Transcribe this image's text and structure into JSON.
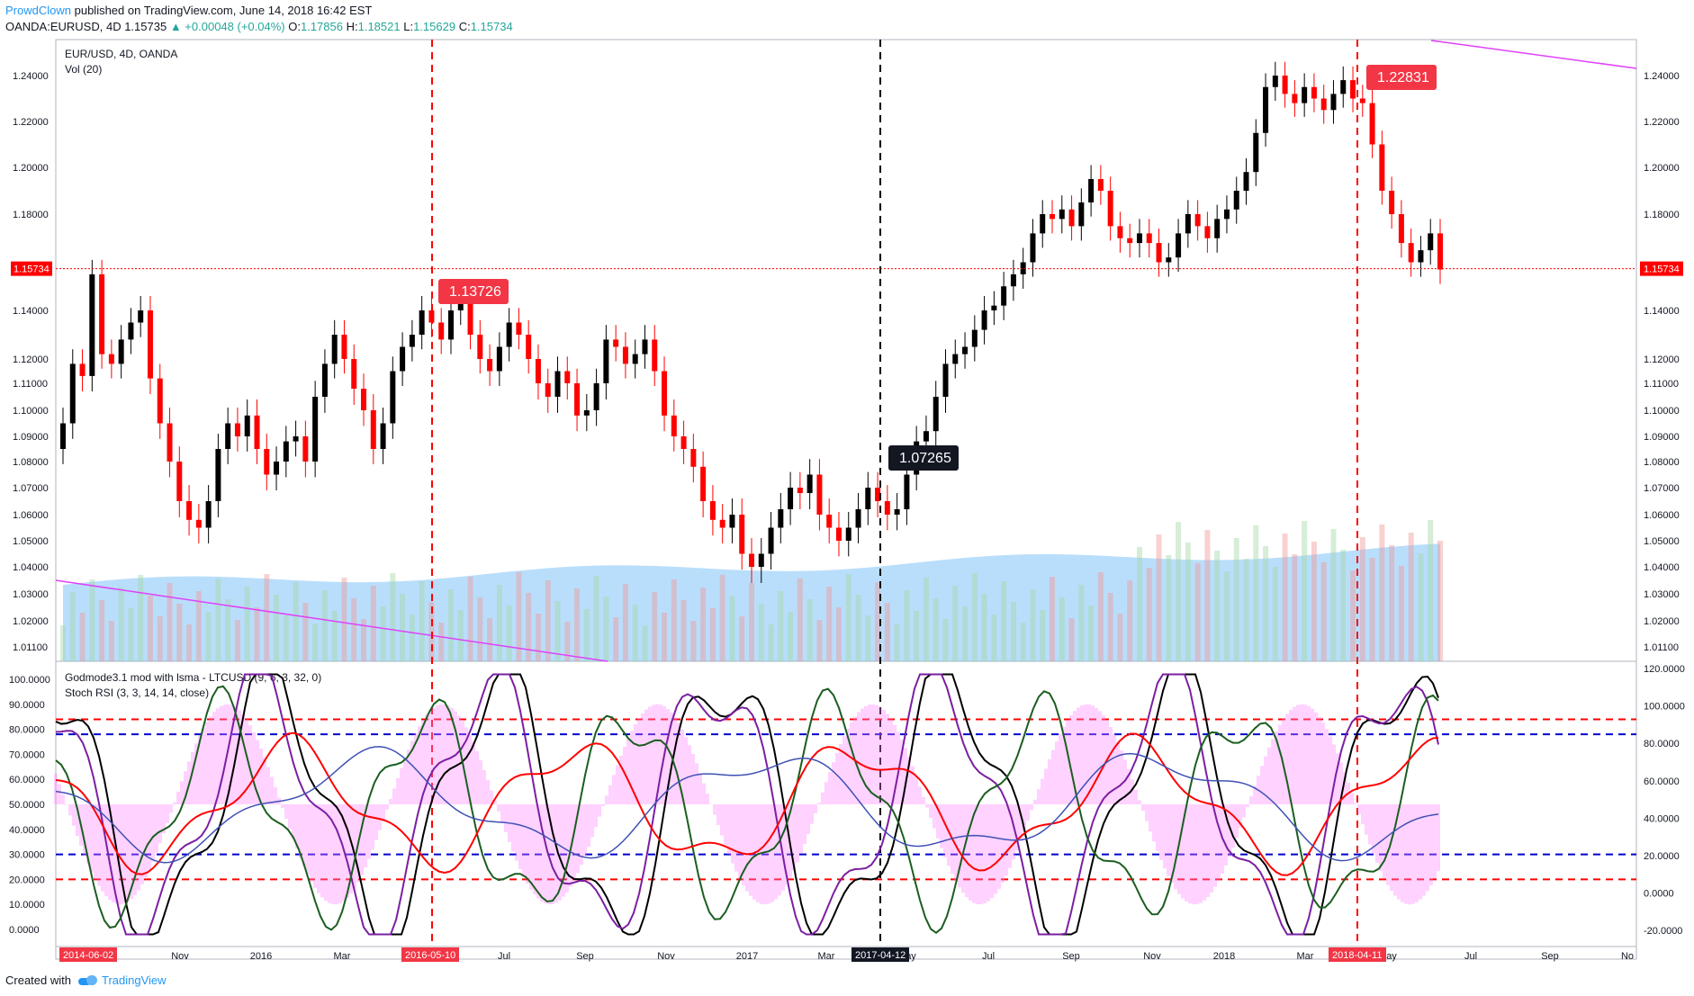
{
  "header": {
    "author": "ProwdClown",
    "published": "published on TradingView.com, June 14, 2018 16:42 EST",
    "symbol": "OANDA:EURUSD, 4D",
    "last": "1.15735",
    "change": "▲ +0.00048 (+0.04%)",
    "o_label": "O:",
    "o": "1.17856",
    "h_label": "H:",
    "h": "1.18521",
    "l_label": "L:",
    "l": "1.15629",
    "c_label": "C:",
    "c": "1.15734"
  },
  "footer": {
    "created": "Created with",
    "brand": "TradingView"
  },
  "colors": {
    "up": "#000000",
    "down": "#ff0000",
    "volume": "#64b5f6",
    "vline": "#ff0000",
    "vline_black": "#000000",
    "trendline": "#e040fb"
  },
  "chart_data": [
    {
      "type": "candlestick",
      "title": "EUR/USD, 4D, OANDA",
      "subtitle": "Vol (20)",
      "ylim": [
        1.005,
        1.255
      ],
      "y_ticks": [
        "1.24000",
        "1.22000",
        "1.20000",
        "1.18000",
        "1.14000",
        "1.12000",
        "1.11000",
        "1.10000",
        "1.09000",
        "1.08000",
        "1.07000",
        "1.06000",
        "1.05000",
        "1.04000",
        "1.03000",
        "1.02000",
        "1.01100"
      ],
      "current_price": "1.15734",
      "annotations": [
        {
          "label": "1.13726",
          "value": 1.13726,
          "style": "red"
        },
        {
          "label": "1.07265",
          "value": 1.07265,
          "style": "black"
        },
        {
          "label": "1.22831",
          "value": 1.22831,
          "style": "red"
        }
      ],
      "series": [
        {
          "name": "close",
          "values": [
            1.095,
            1.118,
            1.113,
            1.155,
            1.122,
            1.118,
            1.128,
            1.135,
            1.14,
            1.112,
            1.095,
            1.08,
            1.065,
            1.058,
            1.055,
            1.065,
            1.085,
            1.095,
            1.09,
            1.098,
            1.085,
            1.075,
            1.08,
            1.088,
            1.09,
            1.08,
            1.105,
            1.118,
            1.13,
            1.12,
            1.108,
            1.1,
            1.085,
            1.095,
            1.115,
            1.125,
            1.13,
            1.14,
            1.135,
            1.128,
            1.14,
            1.145,
            1.13,
            1.12,
            1.115,
            1.125,
            1.135,
            1.13,
            1.12,
            1.11,
            1.105,
            1.115,
            1.11,
            1.098,
            1.1,
            1.11,
            1.128,
            1.125,
            1.118,
            1.122,
            1.128,
            1.115,
            1.098,
            1.09,
            1.085,
            1.078,
            1.065,
            1.058,
            1.055,
            1.06,
            1.045,
            1.04,
            1.045,
            1.055,
            1.062,
            1.07,
            1.068,
            1.075,
            1.06,
            1.055,
            1.05,
            1.055,
            1.062,
            1.07,
            1.065,
            1.06,
            1.062,
            1.075,
            1.088,
            1.092,
            1.105,
            1.118,
            1.122,
            1.125,
            1.132,
            1.14,
            1.142,
            1.15,
            1.155,
            1.16,
            1.172,
            1.18,
            1.178,
            1.182,
            1.175,
            1.185,
            1.195,
            1.19,
            1.175,
            1.17,
            1.168,
            1.172,
            1.168,
            1.16,
            1.162,
            1.172,
            1.18,
            1.175,
            1.17,
            1.178,
            1.182,
            1.19,
            1.198,
            1.215,
            1.235,
            1.24,
            1.232,
            1.228,
            1.235,
            1.23,
            1.225,
            1.232,
            1.238,
            1.23,
            1.228,
            1.21,
            1.19,
            1.18,
            1.168,
            1.16,
            1.165,
            1.172,
            1.157
          ]
        }
      ],
      "volume": {
        "name": "Vol (20)"
      }
    },
    {
      "type": "line",
      "title": "Godmode3.1 mod with lsma - LTCUSD (9, 6, 3, 32, 0)",
      "subtitle": "Stoch RSI (3, 3, 14, 14, close)",
      "left_ticks": [
        "100.0000",
        "90.0000",
        "80.0000",
        "70.0000",
        "60.0000",
        "50.0000",
        "40.0000",
        "30.0000",
        "20.0000",
        "10.0000",
        "0.0000"
      ],
      "right_ticks": [
        "120.0000",
        "100.0000",
        "80.0000",
        "60.0000",
        "40.0000",
        "20.0000",
        "0.0000",
        "-20.0000"
      ],
      "levels": {
        "red_upper": 84,
        "blue_upper": 78,
        "blue_lower": 30,
        "red_lower": 20
      }
    }
  ],
  "x_axis": {
    "ticks": [
      "Nov",
      "2016",
      "Mar",
      "Jul",
      "Sep",
      "Nov",
      "2017",
      "Mar",
      "ay",
      "Jul",
      "Sep",
      "Nov",
      "2018",
      "Mar",
      "ay",
      "Jul",
      "Sep",
      "No"
    ],
    "highlights": [
      "2014-06-02",
      "2016-05-10",
      "2017-04-12",
      "2018-04-11"
    ]
  }
}
